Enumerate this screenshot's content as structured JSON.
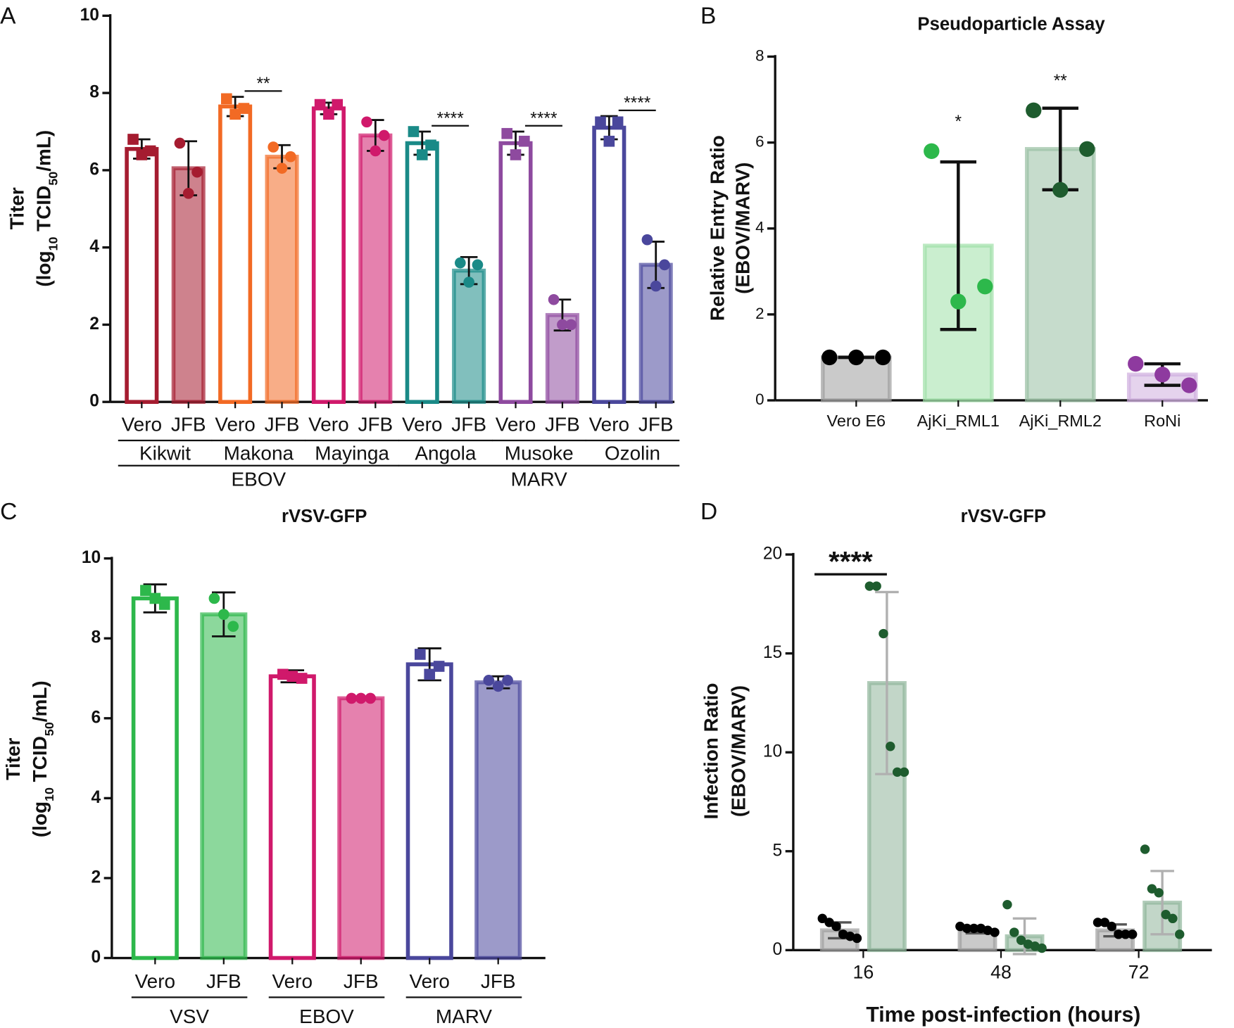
{
  "chart_data": [
    {
      "panel": "A",
      "type": "bar",
      "y_label": "Titer",
      "y_label_parts": [
        "(log",
        "10",
        " TCID",
        "50",
        "/mL)"
      ],
      "categories": [
        "Vero",
        "JFB",
        "Vero",
        "JFB",
        "Vero",
        "JFB",
        "Vero",
        "JFB",
        "Vero",
        "JFB",
        "Vero",
        "JFB"
      ],
      "groups": [
        "Kikwit",
        "Makona",
        "Mayinga",
        "Angola",
        "Musoke",
        "Ozolin"
      ],
      "supergroups": [
        "EBOV",
        "MARV"
      ],
      "values": [
        6.55,
        6.05,
        7.65,
        6.35,
        7.6,
        6.9,
        6.7,
        3.4,
        6.7,
        2.25,
        7.1,
        3.55
      ],
      "errors": [
        0.25,
        0.7,
        0.25,
        0.3,
        0.15,
        0.4,
        0.3,
        0.35,
        0.3,
        0.4,
        0.3,
        0.6
      ],
      "points": [
        [
          6.8,
          6.5,
          6.4
        ],
        [
          6.7,
          5.95,
          5.4
        ],
        [
          7.85,
          7.6,
          7.45
        ],
        [
          6.6,
          6.35,
          6.05
        ],
        [
          7.7,
          7.7,
          7.45
        ],
        [
          7.25,
          6.9,
          6.5
        ],
        [
          7.0,
          6.65,
          6.4
        ],
        [
          3.6,
          3.55,
          3.1
        ],
        [
          6.95,
          6.75,
          6.4
        ],
        [
          2.65,
          2.0,
          2.0
        ],
        [
          7.25,
          7.25,
          6.75
        ],
        [
          4.2,
          3.55,
          3.0
        ]
      ],
      "colors": [
        "#a51c30",
        "#a51c30",
        "#f26a24",
        "#f26a24",
        "#d0196b",
        "#d0196b",
        "#1a8a87",
        "#1a8a87",
        "#8e4a9f",
        "#8e4a9f",
        "#4a479c",
        "#4a479c"
      ],
      "open": [
        true,
        false,
        true,
        false,
        true,
        false,
        true,
        false,
        true,
        false,
        true,
        false
      ],
      "significance": [
        null,
        "**",
        null,
        "****",
        "****",
        "****"
      ],
      "ylim": [
        0,
        10
      ],
      "yticks": [
        0,
        2,
        4,
        6,
        8,
        10
      ]
    },
    {
      "panel": "B",
      "type": "bar",
      "title": "Pseudoparticle Assay",
      "y_label": "Relative Entry Ratio",
      "y_label_parts": [
        "(EBOV/MARV)"
      ],
      "categories": [
        "Vero E6",
        "AjKi_RML1",
        "AjKi_RML2",
        "RoNi"
      ],
      "values": [
        1,
        3.6,
        5.85,
        0.6
      ],
      "errors": [
        0,
        1.95,
        0.95,
        0.25
      ],
      "points": [
        [
          1,
          1,
          1
        ],
        [
          5.8,
          2.65,
          2.3
        ],
        [
          6.75,
          5.85,
          4.9
        ],
        [
          0.85,
          0.35,
          0.6
        ]
      ],
      "colors": [
        "#9e9e9e",
        "#9fe0a8",
        "#98bfa2",
        "#cfaede"
      ],
      "point_colors": [
        "#000000",
        "#2db84b",
        "#1e5c2e",
        "#8e3a9f"
      ],
      "open": [
        false,
        false,
        false,
        false
      ],
      "annotations": [
        null,
        "*",
        "**",
        null
      ],
      "ylim": [
        0,
        8
      ],
      "yticks": [
        0,
        2,
        4,
        6,
        8
      ]
    },
    {
      "panel": "C",
      "type": "bar",
      "title": "rVSV-GFP",
      "y_label": "Titer",
      "y_label_parts": [
        "(log",
        "10",
        " TCID",
        "50",
        "/mL)"
      ],
      "categories": [
        "Vero",
        "JFB",
        "Vero",
        "JFB",
        "Vero",
        "JFB"
      ],
      "groups": [
        "VSV",
        "EBOV",
        "MARV"
      ],
      "values": [
        9.0,
        8.6,
        7.05,
        6.5,
        7.35,
        6.9
      ],
      "errors": [
        0.35,
        0.55,
        0.15,
        0,
        0.4,
        0.15
      ],
      "points": [
        [
          9.2,
          8.85,
          9.0
        ],
        [
          9.0,
          8.3,
          8.6
        ],
        [
          7.1,
          7.0,
          7.05
        ],
        [
          6.5,
          6.5,
          6.5
        ],
        [
          7.6,
          7.3,
          7.1
        ],
        [
          6.95,
          6.95,
          6.8
        ]
      ],
      "colors": [
        "#2db84b",
        "#2db84b",
        "#d0196b",
        "#d0196b",
        "#4a479c",
        "#4a479c"
      ],
      "open": [
        true,
        false,
        true,
        false,
        true,
        false
      ],
      "ylim": [
        0,
        10
      ],
      "yticks": [
        0,
        2,
        4,
        6,
        8,
        10
      ]
    },
    {
      "panel": "D",
      "type": "grouped_bar",
      "title": "rVSV-GFP",
      "y_label": "Infection Ratio",
      "y_label_parts": [
        "(EBOV/MARV)"
      ],
      "x_label": "Time post-infection (hours)",
      "categories": [
        "16",
        "48",
        "72"
      ],
      "series": [
        {
          "color": "#9e9e9e",
          "point_color": "#000000",
          "error_color": "#555555",
          "values": [
            1,
            1,
            1
          ],
          "errors": [
            0.4,
            0.15,
            0.3
          ],
          "points": [
            [
              1.6,
              1.4,
              1.2,
              0.8,
              0.7,
              0.6
            ],
            [
              1.2,
              1.1,
              1.1,
              1.1,
              1.0,
              0.9
            ],
            [
              1.4,
              1.4,
              1.2,
              0.8,
              0.8,
              0.8
            ]
          ]
        },
        {
          "color": "#8fb59a",
          "point_color": "#1e5c2e",
          "error_color": "#b0b0b0",
          "values": [
            13.5,
            0.7,
            2.4
          ],
          "errors": [
            4.6,
            0.9,
            1.6
          ],
          "points": [
            [
              18.4,
              18.4,
              16,
              10.3,
              9,
              9
            ],
            [
              2.3,
              0.9,
              0.5,
              0.3,
              0.2,
              0.1
            ],
            [
              5.1,
              3.1,
              2.9,
              1.8,
              1.6,
              0.8
            ]
          ]
        }
      ],
      "significance": [
        "****",
        null,
        null
      ],
      "ylim": [
        0,
        20
      ],
      "yticks": [
        0,
        5,
        10,
        15,
        20
      ]
    }
  ]
}
